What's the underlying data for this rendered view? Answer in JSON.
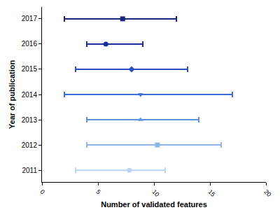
{
  "chart_data": {
    "type": "scatter",
    "orientation": "horizontal",
    "x_label": "Number of validated features",
    "y_label": "Year of publication",
    "xlim": [
      0,
      20
    ],
    "xticks": [
      0,
      5,
      10,
      15,
      20
    ],
    "grid": false,
    "series": [
      {
        "name": "2011",
        "color": "#b9d3f2",
        "marker": "circle",
        "values": [
          7.8
        ],
        "error_minus": [
          4.8
        ],
        "error_plus": [
          3.2
        ]
      },
      {
        "name": "2012",
        "color": "#8db5ea",
        "marker": "square",
        "values": [
          10.3
        ],
        "error_minus": [
          6.3
        ],
        "error_plus": [
          5.7
        ]
      },
      {
        "name": "2013",
        "color": "#5f92e0",
        "marker": "triangle-up",
        "values": [
          8.8
        ],
        "error_minus": [
          4.8
        ],
        "error_plus": [
          5.2
        ]
      },
      {
        "name": "2014",
        "color": "#3b6fd8",
        "marker": "triangle-down",
        "values": [
          8.8
        ],
        "error_minus": [
          6.8
        ],
        "error_plus": [
          8.2
        ]
      },
      {
        "name": "2015",
        "color": "#2a4fc6",
        "marker": "diamond",
        "values": [
          8
        ],
        "error_minus": [
          5
        ],
        "error_plus": [
          5
        ]
      },
      {
        "name": "2016",
        "color": "#1b2e9c",
        "marker": "circle",
        "values": [
          5.7
        ],
        "error_minus": [
          1.7
        ],
        "error_plus": [
          3.3
        ]
      },
      {
        "name": "2017",
        "color": "#1a237e",
        "marker": "square",
        "values": [
          7.2
        ],
        "error_minus": [
          5.2
        ],
        "error_plus": [
          4.8
        ]
      }
    ]
  }
}
